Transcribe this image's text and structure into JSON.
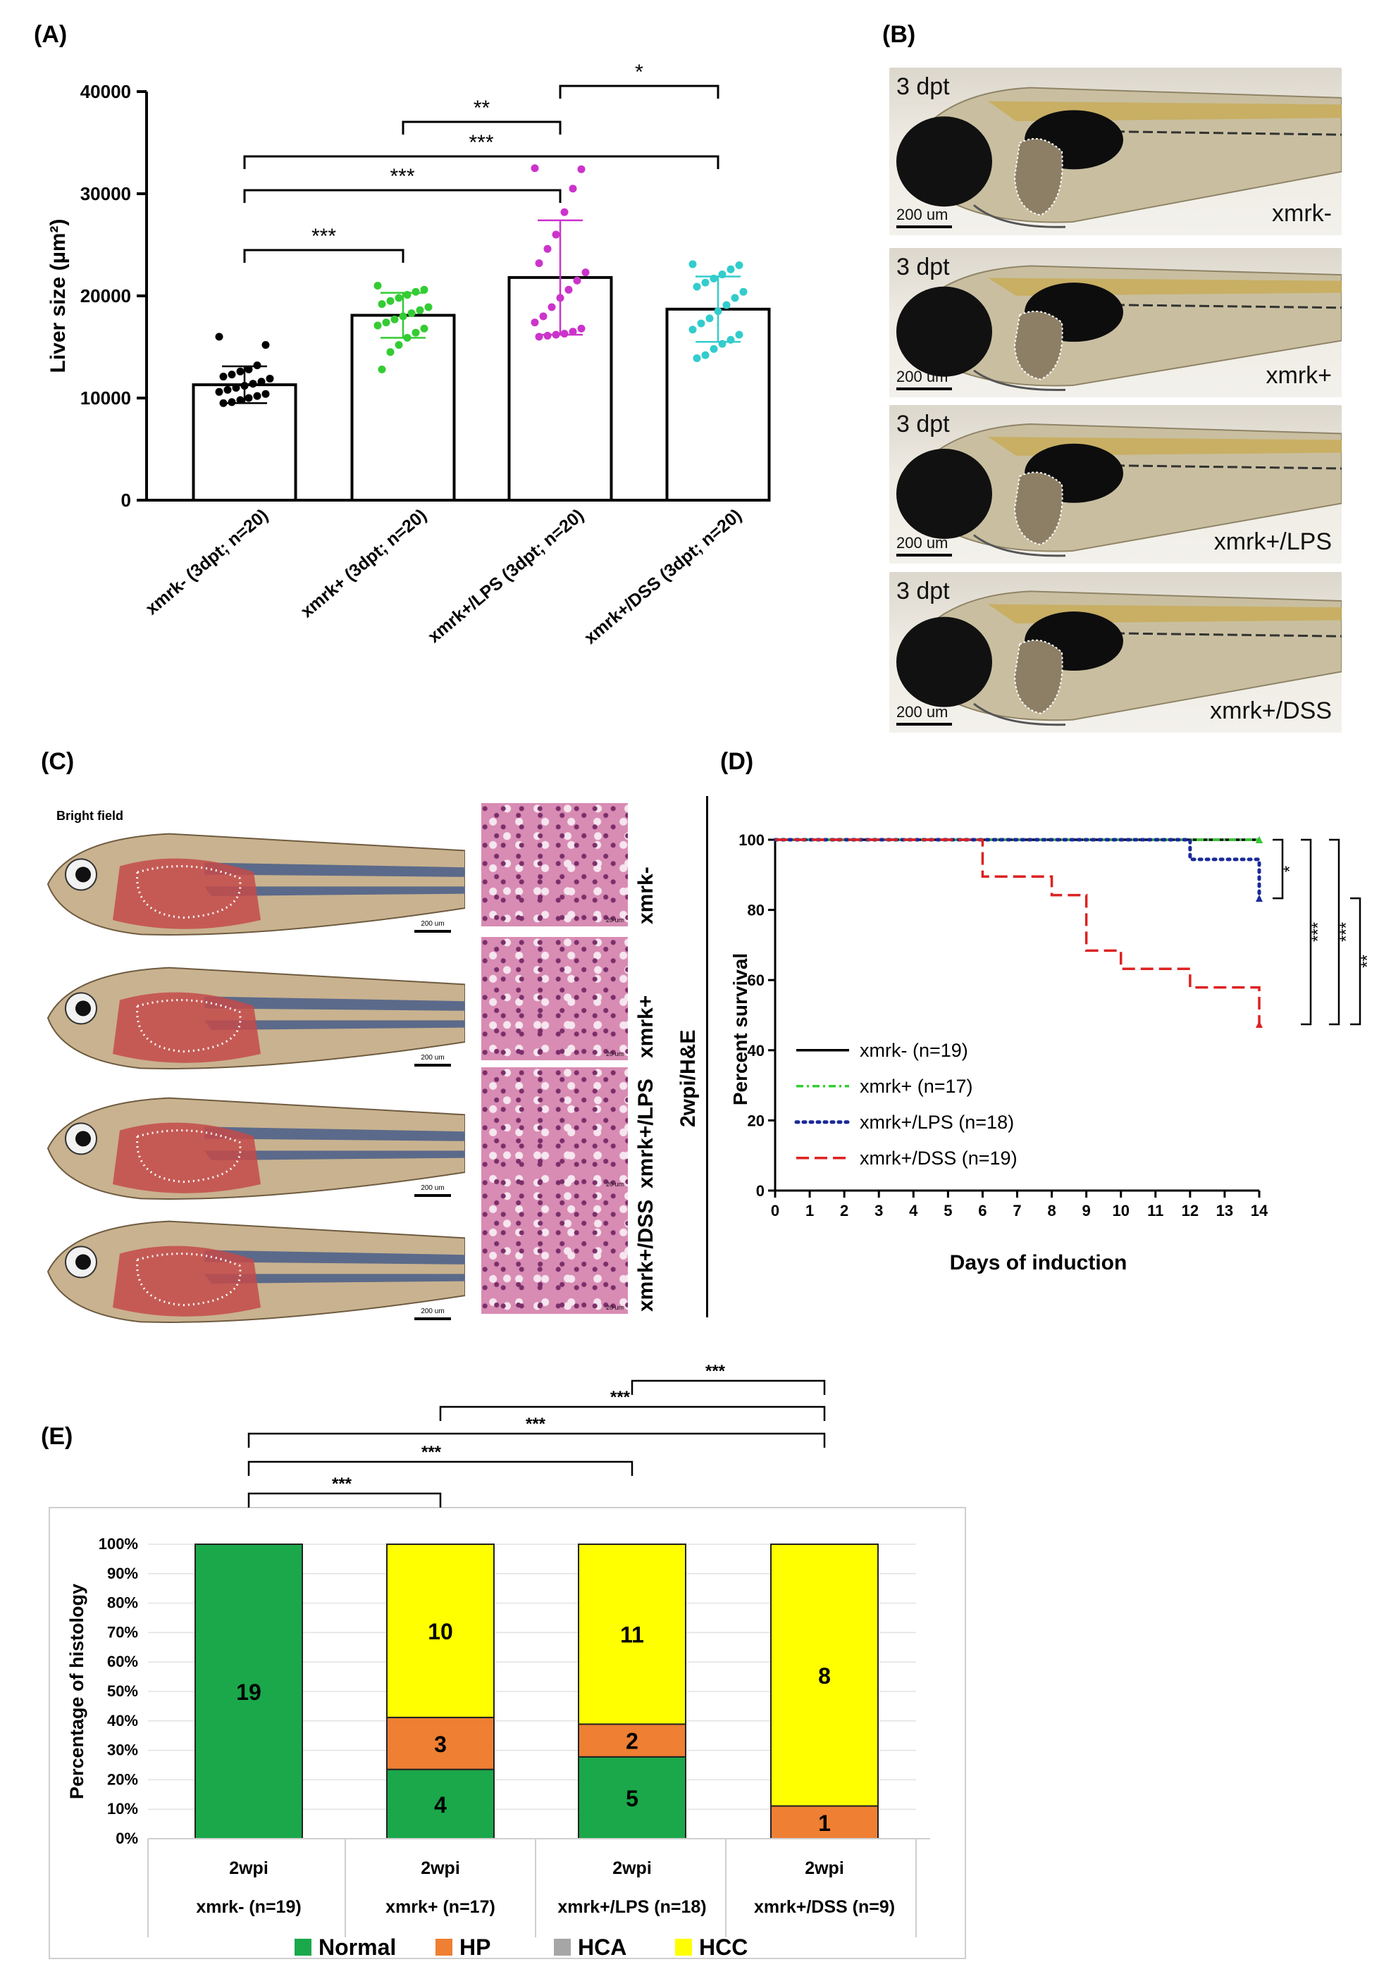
{
  "panels": {
    "A": "(A)",
    "B": "(B)",
    "C": "(C)",
    "D": "(D)",
    "E": "(E)"
  },
  "chart_data": [
    {
      "panel": "A",
      "type": "bar",
      "ylabel": "Liver size (µm²)",
      "ylim": [
        0,
        40000
      ],
      "yticks": [
        "0",
        "10000",
        "20000",
        "30000",
        "40000"
      ],
      "categories": [
        "xmrk- (3dpt; n=20)",
        "xmrk+ (3dpt; n=20)",
        "xmrk+/LPS (3dpt; n=20)",
        "xmrk+/DSS (3dpt; n=20)"
      ],
      "values": [
        11300,
        18100,
        21800,
        18700
      ],
      "error": [
        1800,
        2200,
        5600,
        3200
      ],
      "point_colors": [
        "#000000",
        "#33cc33",
        "#cc33cc",
        "#33cccc"
      ],
      "points": [
        [
          16000,
          15200,
          13200,
          12800,
          12600,
          12300,
          12100,
          11900,
          11600,
          11400,
          11200,
          11000,
          10800,
          10600,
          10400,
          10200,
          10000,
          9800,
          9600,
          9500
        ],
        [
          21000,
          20600,
          20400,
          20100,
          19800,
          19500,
          19200,
          18900,
          18600,
          18300,
          18000,
          17700,
          17400,
          17100,
          16800,
          16400,
          15900,
          15200,
          14500,
          12800
        ],
        [
          32500,
          32400,
          30500,
          28200,
          26000,
          24600,
          23200,
          22300,
          21500,
          20600,
          19800,
          18900,
          18000,
          17400,
          16800,
          16500,
          16300,
          16200,
          16100,
          16000
        ],
        [
          23100,
          23000,
          22600,
          22100,
          21700,
          21300,
          20900,
          20400,
          19800,
          19100,
          18500,
          17800,
          17300,
          16700,
          16200,
          15700,
          15300,
          14800,
          14200,
          13900
        ]
      ],
      "significance": [
        {
          "from": 0,
          "to": 1,
          "label": "***"
        },
        {
          "from": 0,
          "to": 2,
          "label": "***"
        },
        {
          "from": 0,
          "to": 3,
          "label": "***"
        },
        {
          "from": 1,
          "to": 2,
          "label": "**"
        },
        {
          "from": 2,
          "to": 3,
          "label": "*"
        }
      ]
    },
    {
      "panel": "D",
      "type": "line",
      "xlabel": "Days of induction",
      "ylabel": "Percent survival",
      "xlim": [
        0,
        14
      ],
      "ylim": [
        0,
        100
      ],
      "xticks": [
        "0",
        "1",
        "2",
        "3",
        "4",
        "5",
        "6",
        "7",
        "8",
        "9",
        "10",
        "11",
        "12",
        "13",
        "14"
      ],
      "yticks": [
        "0",
        "20",
        "40",
        "60",
        "80",
        "100"
      ],
      "series": [
        {
          "name": "xmrk- (n=19)",
          "color": "#000000",
          "style": "solid",
          "steps": [
            [
              0,
              100
            ],
            [
              14,
              100
            ]
          ]
        },
        {
          "name": "xmrk+ (n=17)",
          "color": "#33cc33",
          "style": "dashdot",
          "steps": [
            [
              0,
              100
            ],
            [
              14,
              100
            ]
          ]
        },
        {
          "name": "xmrk+/LPS  (n=18)",
          "color": "#1a2a99",
          "style": "dotted",
          "steps": [
            [
              0,
              100
            ],
            [
              12,
              100
            ],
            [
              12,
              94.4
            ],
            [
              14,
              94.4
            ],
            [
              14,
              83.3
            ]
          ]
        },
        {
          "name": "xmrk+/DSS  (n=19)",
          "color": "#dd2222",
          "style": "dashed",
          "steps": [
            [
              0,
              100
            ],
            [
              6,
              100
            ],
            [
              6,
              89.5
            ],
            [
              8,
              89.5
            ],
            [
              8,
              84.2
            ],
            [
              9,
              84.2
            ],
            [
              9,
              68.4
            ],
            [
              10,
              68.4
            ],
            [
              10,
              63.2
            ],
            [
              12,
              63.2
            ],
            [
              12,
              57.9
            ],
            [
              14,
              57.9
            ],
            [
              14,
              47.4
            ]
          ]
        }
      ],
      "significance": [
        {
          "label": "*"
        },
        {
          "label": "***"
        },
        {
          "label": "***"
        },
        {
          "label": "**"
        }
      ]
    },
    {
      "panel": "E",
      "type": "bar",
      "stacked": true,
      "ylabel": "Percentage of histology",
      "yticks": [
        "0%",
        "10%",
        "20%",
        "30%",
        "40%",
        "50%",
        "60%",
        "70%",
        "80%",
        "90%",
        "100%"
      ],
      "categories": [
        {
          "time": "2wpi",
          "group": "xmrk- (n=19)"
        },
        {
          "time": "2wpi",
          "group": "xmrk+ (n=17)"
        },
        {
          "time": "2wpi",
          "group": "xmrk+/LPS (n=18)"
        },
        {
          "time": "2wpi",
          "group": "xmrk+/DSS (n=9)"
        }
      ],
      "series": [
        {
          "name": "Normal",
          "color": "#1aa84a",
          "values": [
            19,
            4,
            5,
            0
          ]
        },
        {
          "name": "HP",
          "color": "#ee7f33",
          "values": [
            0,
            3,
            2,
            1
          ]
        },
        {
          "name": "HCA",
          "color": "#a6a6a6",
          "values": [
            0,
            0,
            0,
            0
          ]
        },
        {
          "name": "HCC",
          "color": "#ffff00",
          "values": [
            0,
            10,
            11,
            8
          ]
        }
      ],
      "significance": [
        {
          "from": 0,
          "to": 1,
          "label": "***"
        },
        {
          "from": 0,
          "to": 2,
          "label": "***"
        },
        {
          "from": 0,
          "to": 3,
          "label": "***"
        },
        {
          "from": 1,
          "to": 3,
          "label": "***"
        },
        {
          "from": 2,
          "to": 3,
          "label": "***"
        }
      ]
    }
  ],
  "panelB": {
    "images": [
      {
        "time": "3 dpt",
        "scale": "200 um",
        "group": "xmrk-"
      },
      {
        "time": "3 dpt",
        "scale": "200 um",
        "group": "xmrk+"
      },
      {
        "time": "3 dpt",
        "scale": "200 um",
        "group": "xmrk+/LPS"
      },
      {
        "time": "3 dpt",
        "scale": "200 um",
        "group": "xmrk+/DSS"
      }
    ]
  },
  "panelC": {
    "bright_field": "Bright field",
    "scale": "200 um",
    "histo_scale": "20 um",
    "side_label": "2wpi/H&E",
    "groups": [
      "xmrk-",
      "xmrk+",
      "xmrk+/LPS",
      "xmrk+/DSS"
    ]
  },
  "colors": {
    "axis": "#000000",
    "photo_bg": "#e8e2d6",
    "histo": "#d88bb3"
  }
}
